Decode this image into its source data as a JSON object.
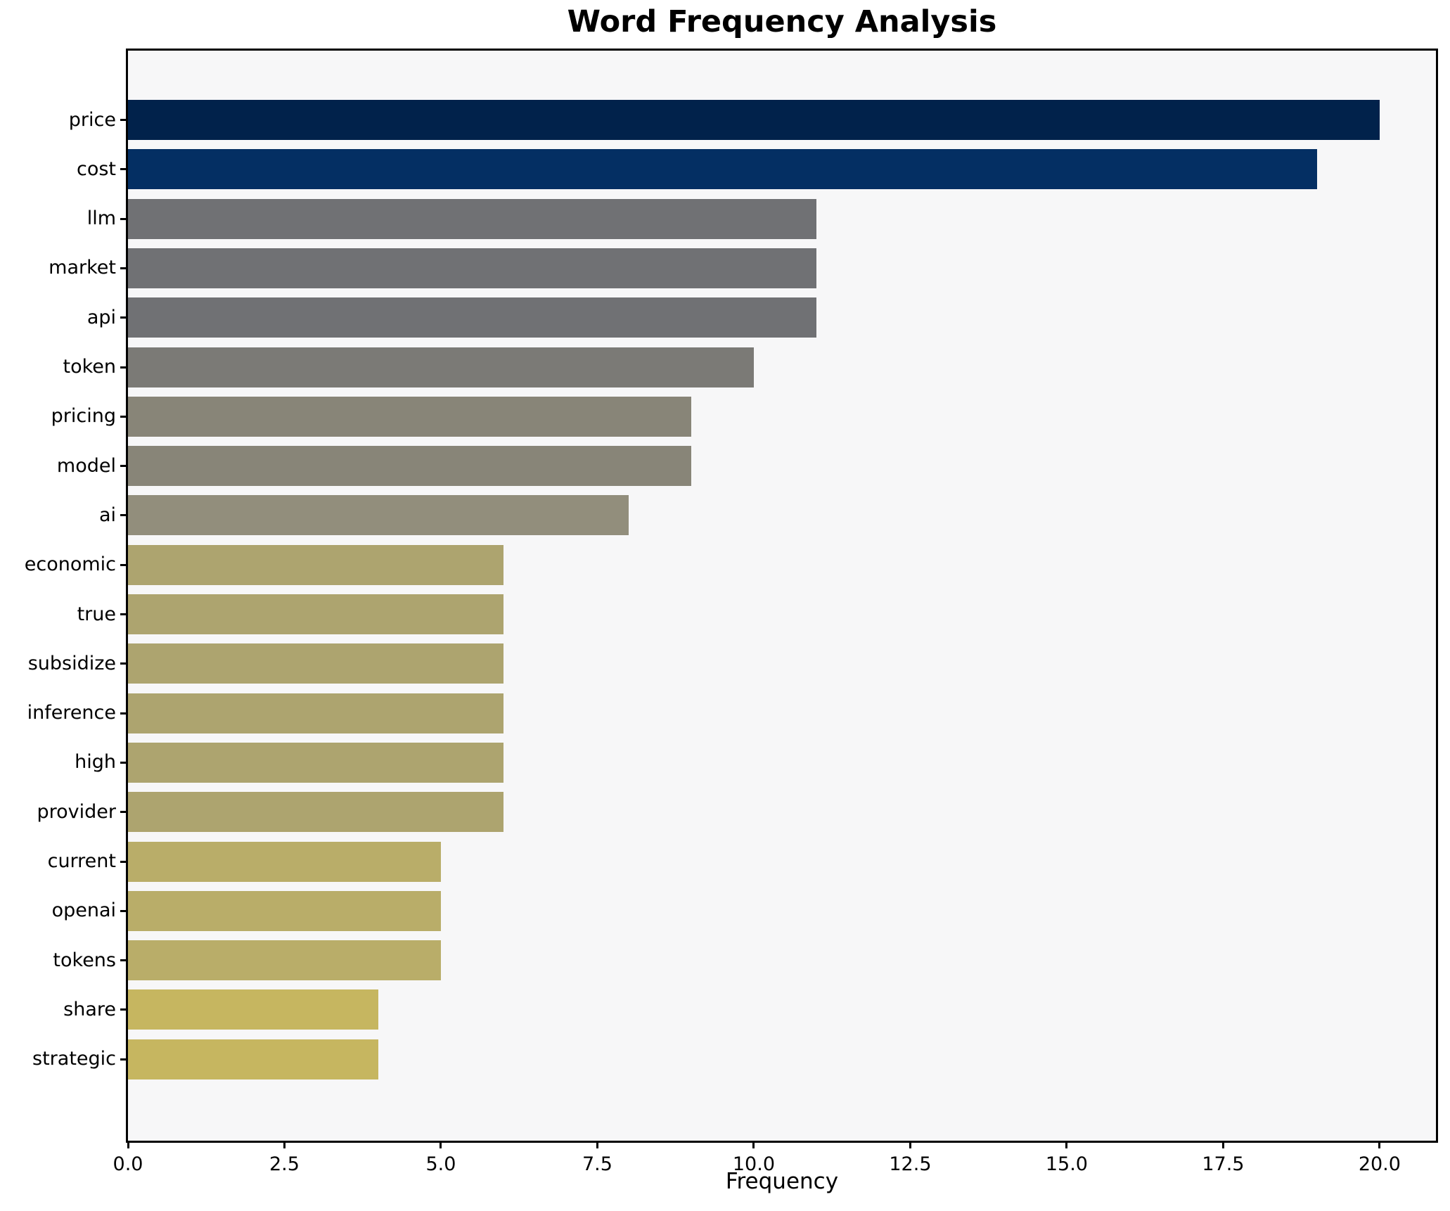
{
  "title": "Word Frequency Analysis",
  "x_axis_label": "Frequency",
  "chart_data": {
    "type": "bar",
    "orientation": "horizontal",
    "title": "Word Frequency Analysis",
    "xlabel": "Frequency",
    "ylabel": "",
    "categories": [
      "price",
      "cost",
      "llm",
      "market",
      "api",
      "token",
      "pricing",
      "model",
      "ai",
      "economic",
      "true",
      "subsidize",
      "inference",
      "high",
      "provider",
      "current",
      "openai",
      "tokens",
      "share",
      "strategic"
    ],
    "values": [
      20,
      19,
      11,
      11,
      11,
      10,
      9,
      9,
      8,
      6,
      6,
      6,
      6,
      6,
      6,
      5,
      5,
      5,
      4,
      4
    ],
    "bar_colors": [
      "#01224b",
      "#042f63",
      "#707174",
      "#707174",
      "#707174",
      "#7b7a76",
      "#888578",
      "#888578",
      "#928e7c",
      "#ada46f",
      "#ada46f",
      "#ada46f",
      "#ada46f",
      "#ada46f",
      "#ada46f",
      "#b9ad69",
      "#b9ad69",
      "#b9ad69",
      "#c6b660",
      "#c6b660"
    ],
    "xlim": [
      0,
      20.9
    ],
    "x_ticks": [
      0,
      2.5,
      5,
      7.5,
      10,
      12.5,
      15,
      17.5,
      20
    ],
    "x_tick_labels": [
      "0.0",
      "2.5",
      "5.0",
      "7.5",
      "10.0",
      "12.5",
      "15.0",
      "17.5",
      "20.0"
    ],
    "grid": false,
    "legend": false,
    "plot_background": "#f7f7f8",
    "figure_background": "#ffffff",
    "spine_color": "#000000",
    "text_color": "#000000"
  }
}
